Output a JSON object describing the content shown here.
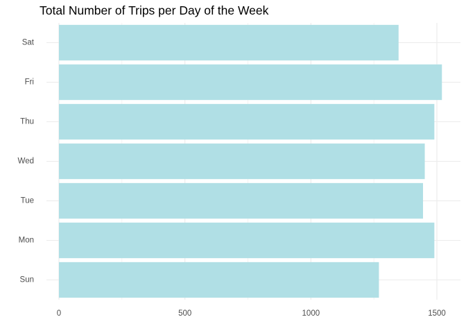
{
  "chart_data": {
    "type": "bar",
    "orientation": "horizontal",
    "title": "Total Number of Trips per Day of the Week",
    "xlabel": "",
    "ylabel": "",
    "categories": [
      "Sun",
      "Mon",
      "Tue",
      "Wed",
      "Thu",
      "Fri",
      "Sat"
    ],
    "values": [
      1270,
      1490,
      1445,
      1452,
      1490,
      1520,
      1348
    ],
    "xlim": [
      0,
      1580
    ],
    "x_ticks": [
      0,
      500,
      1000,
      1500
    ],
    "grid": true,
    "bar_color": "#b0dfe5",
    "grid_color": "#ebebeb"
  }
}
